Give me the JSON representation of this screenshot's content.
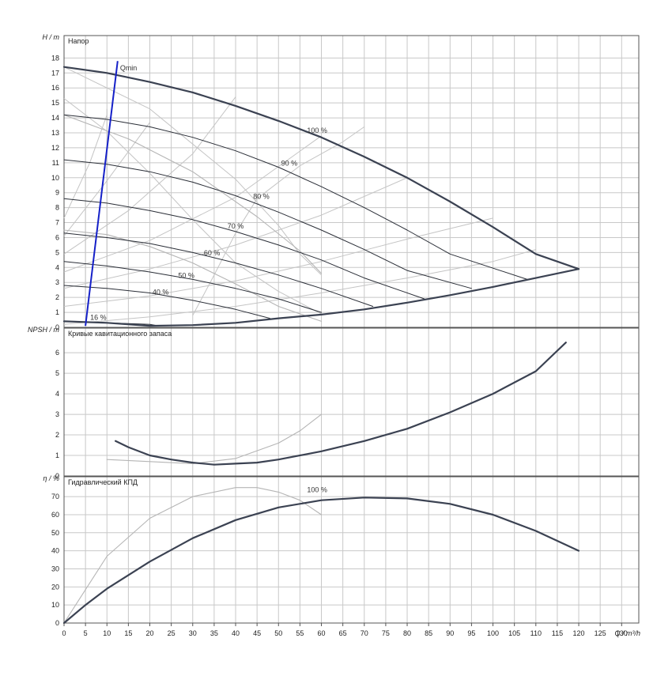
{
  "chart_data": [
    {
      "type": "line",
      "panel": "head",
      "title": "Напор",
      "ylabel_var": "H",
      "ylabel_unit": "m",
      "xlim": [
        0,
        134
      ],
      "ylim": [
        0,
        19.5
      ],
      "yticks": [
        0,
        1,
        2,
        3,
        4,
        5,
        6,
        7,
        8,
        9,
        10,
        11,
        12,
        13,
        14,
        15,
        16,
        17,
        18
      ],
      "grid": true,
      "qmin": {
        "label": "Qmin",
        "points": [
          [
            5,
            0.1
          ],
          [
            12.5,
            17.8
          ]
        ]
      },
      "series": [
        {
          "name": "100 %",
          "role": "main",
          "points": [
            [
              0,
              17.4
            ],
            [
              10,
              17.0
            ],
            [
              20,
              16.4
            ],
            [
              30,
              15.7
            ],
            [
              40,
              14.8
            ],
            [
              50,
              13.8
            ],
            [
              60,
              12.7
            ],
            [
              70,
              11.4
            ],
            [
              80,
              10.0
            ],
            [
              90,
              8.4
            ],
            [
              100,
              6.7
            ],
            [
              110,
              4.9
            ],
            [
              120,
              3.9
            ]
          ]
        },
        {
          "name": "90 %",
          "role": "speed",
          "points": [
            [
              0,
              14.2
            ],
            [
              10,
              13.9
            ],
            [
              20,
              13.4
            ],
            [
              30,
              12.7
            ],
            [
              40,
              11.8
            ],
            [
              50,
              10.7
            ],
            [
              60,
              9.4
            ],
            [
              70,
              8.0
            ],
            [
              80,
              6.5
            ],
            [
              90,
              4.9
            ],
            [
              108,
              3.2
            ]
          ]
        },
        {
          "name": "80 %",
          "role": "speed",
          "points": [
            [
              0,
              11.2
            ],
            [
              10,
              10.9
            ],
            [
              20,
              10.4
            ],
            [
              30,
              9.7
            ],
            [
              40,
              8.8
            ],
            [
              50,
              7.7
            ],
            [
              60,
              6.5
            ],
            [
              70,
              5.2
            ],
            [
              80,
              3.8
            ],
            [
              95,
              2.6
            ]
          ]
        },
        {
          "name": "70 %",
          "role": "speed",
          "points": [
            [
              0,
              8.6
            ],
            [
              10,
              8.3
            ],
            [
              20,
              7.8
            ],
            [
              30,
              7.2
            ],
            [
              40,
              6.4
            ],
            [
              50,
              5.5
            ],
            [
              60,
              4.5
            ],
            [
              70,
              3.3
            ],
            [
              84,
              1.9
            ]
          ]
        },
        {
          "name": "60 %",
          "role": "speed",
          "points": [
            [
              0,
              6.3
            ],
            [
              10,
              6.0
            ],
            [
              20,
              5.6
            ],
            [
              30,
              5.0
            ],
            [
              40,
              4.3
            ],
            [
              50,
              3.5
            ],
            [
              60,
              2.6
            ],
            [
              72,
              1.4
            ]
          ]
        },
        {
          "name": "50 %",
          "role": "speed",
          "points": [
            [
              0,
              4.4
            ],
            [
              10,
              4.1
            ],
            [
              20,
              3.7
            ],
            [
              30,
              3.2
            ],
            [
              40,
              2.6
            ],
            [
              50,
              1.9
            ],
            [
              60,
              1.0
            ]
          ]
        },
        {
          "name": "40 %",
          "role": "speed",
          "points": [
            [
              0,
              2.8
            ],
            [
              10,
              2.6
            ],
            [
              20,
              2.3
            ],
            [
              30,
              1.8
            ],
            [
              40,
              1.2
            ],
            [
              48,
              0.6
            ]
          ]
        },
        {
          "name": "16 %",
          "role": "speed",
          "points": [
            [
              0,
              0.4
            ],
            [
              10,
              0.3
            ],
            [
              20,
              0.2
            ],
            [
              22,
              0.1
            ]
          ]
        },
        {
          "name": "",
          "role": "minimum",
          "points": [
            [
              0,
              0.4
            ],
            [
              10,
              0.3
            ],
            [
              20,
              0.1
            ],
            [
              30,
              0.15
            ],
            [
              40,
              0.3
            ],
            [
              50,
              0.6
            ],
            [
              60,
              0.85
            ],
            [
              70,
              1.2
            ],
            [
              80,
              1.65
            ],
            [
              90,
              2.15
            ],
            [
              100,
              2.7
            ],
            [
              110,
              3.3
            ],
            [
              120,
              3.9
            ]
          ]
        },
        {
          "name": "",
          "role": "secondary",
          "points": [
            [
              0,
              6.5
            ],
            [
              10,
              6.2
            ],
            [
              20,
              5.4
            ],
            [
              30,
              4.3
            ],
            [
              40,
              2.9
            ],
            [
              50,
              1.4
            ],
            [
              60,
              0.4
            ]
          ]
        },
        {
          "name": "",
          "role": "secondary",
          "points": [
            [
              0,
              14.2
            ],
            [
              15,
              12.6
            ],
            [
              30,
              10.4
            ],
            [
              45,
              7.4
            ],
            [
              55,
              5.1
            ],
            [
              60,
              3.6
            ]
          ]
        }
      ],
      "efficiency_lines": [
        {
          "points": [
            [
              0,
              0.2
            ],
            [
              20,
              0.7
            ],
            [
              40,
              1.4
            ],
            [
              60,
              2.3
            ],
            [
              80,
              3.3
            ],
            [
              100,
              4.4
            ],
            [
              110,
              5.2
            ]
          ]
        },
        {
          "points": [
            [
              0,
              1.4
            ],
            [
              20,
              2.1
            ],
            [
              40,
              3.1
            ],
            [
              60,
              4.4
            ],
            [
              80,
              5.9
            ],
            [
              100,
              7.3
            ]
          ]
        },
        {
          "points": [
            [
              0,
              2.6
            ],
            [
              20,
              3.9
            ],
            [
              40,
              5.5
            ],
            [
              60,
              7.5
            ],
            [
              80,
              10.0
            ]
          ]
        },
        {
          "points": [
            [
              0,
              3.7
            ],
            [
              20,
              5.8
            ],
            [
              40,
              8.7
            ],
            [
              60,
              12.8
            ]
          ]
        },
        {
          "points": [
            [
              0,
              4.9
            ],
            [
              15,
              7.8
            ],
            [
              30,
              11.6
            ],
            [
              40,
              15.4
            ]
          ]
        },
        {
          "points": [
            [
              0,
              6.1
            ],
            [
              10,
              9.8
            ],
            [
              20,
              13.7
            ]
          ]
        },
        {
          "points": [
            [
              0,
              7.3
            ],
            [
              6,
              11.0
            ],
            [
              10,
              14.2
            ]
          ]
        },
        {
          "points": [
            [
              0,
              15.3
            ],
            [
              10,
              13.1
            ],
            [
              20,
              10.3
            ],
            [
              30,
              7.2
            ],
            [
              40,
              4.3
            ],
            [
              50,
              2.4
            ],
            [
              60,
              0.9
            ]
          ]
        },
        {
          "points": [
            [
              0,
              17.4
            ],
            [
              20,
              14.6
            ],
            [
              40,
              9.9
            ],
            [
              50,
              6.8
            ],
            [
              55,
              4.9
            ],
            [
              60,
              3.5
            ]
          ]
        },
        {
          "points": [
            [
              5,
              1.0
            ],
            [
              5,
              3.5
            ],
            [
              5,
              7.5
            ],
            [
              5,
              12.5
            ]
          ]
        },
        {
          "points": [
            [
              10,
              1.6
            ],
            [
              10,
              5.0
            ],
            [
              10,
              9.5
            ],
            [
              10,
              14.6
            ]
          ]
        },
        {
          "points": [
            [
              30,
              0.8
            ],
            [
              35,
              3.5
            ],
            [
              40,
              6.3
            ],
            [
              45,
              8.6
            ],
            [
              55,
              10.8
            ],
            [
              65,
              12.4
            ],
            [
              70,
              13.4
            ]
          ]
        }
      ],
      "labels": [
        {
          "text": "100 %",
          "x": 59,
          "y": 13.0
        },
        {
          "text": "90 %",
          "x": 52.5,
          "y": 10.8
        },
        {
          "text": "80 %",
          "x": 46,
          "y": 8.6
        },
        {
          "text": "70 %",
          "x": 40,
          "y": 6.6
        },
        {
          "text": "60 %",
          "x": 34.5,
          "y": 4.8
        },
        {
          "text": "50 %",
          "x": 28.5,
          "y": 3.3
        },
        {
          "text": "40 %",
          "x": 22.5,
          "y": 2.2
        },
        {
          "text": "16 %",
          "x": 8,
          "y": 0.5
        }
      ]
    },
    {
      "type": "line",
      "panel": "npsh",
      "title": "Кривые кавитационного запаса",
      "ylabel_var": "NPSH",
      "ylabel_unit": "m",
      "xlim": [
        0,
        134
      ],
      "ylim": [
        0,
        7.2
      ],
      "yticks": [
        0,
        1,
        2,
        3,
        4,
        5,
        6
      ],
      "grid": true,
      "series": [
        {
          "name": "",
          "role": "main",
          "points": [
            [
              12,
              1.7
            ],
            [
              15,
              1.4
            ],
            [
              20,
              1.0
            ],
            [
              25,
              0.8
            ],
            [
              30,
              0.65
            ],
            [
              35,
              0.55
            ],
            [
              40,
              0.6
            ],
            [
              45,
              0.65
            ],
            [
              50,
              0.8
            ],
            [
              60,
              1.2
            ],
            [
              70,
              1.7
            ],
            [
              80,
              2.3
            ],
            [
              90,
              3.1
            ],
            [
              100,
              4.0
            ],
            [
              110,
              5.1
            ],
            [
              117,
              6.5
            ]
          ]
        },
        {
          "name": "",
          "role": "secondary",
          "points": [
            [
              10,
              0.8
            ],
            [
              20,
              0.7
            ],
            [
              30,
              0.6
            ],
            [
              40,
              0.85
            ],
            [
              50,
              1.6
            ],
            [
              55,
              2.2
            ],
            [
              60,
              3.0
            ]
          ]
        }
      ]
    },
    {
      "type": "line",
      "panel": "efficiency",
      "title": "Гидравлический КПД",
      "ylabel_var": "η",
      "ylabel_unit": "%",
      "xlabel_var": "Q",
      "xlabel_unit": "m³/h",
      "xlim": [
        0,
        134
      ],
      "ylim": [
        0,
        81
      ],
      "yticks": [
        0,
        10,
        20,
        30,
        40,
        50,
        60,
        70
      ],
      "xticks": [
        0,
        5,
        10,
        15,
        20,
        25,
        30,
        35,
        40,
        45,
        50,
        55,
        60,
        65,
        70,
        75,
        80,
        85,
        90,
        95,
        100,
        105,
        110,
        115,
        120,
        125,
        130
      ],
      "grid": true,
      "series": [
        {
          "name": "100 %",
          "role": "main",
          "points": [
            [
              0,
              0
            ],
            [
              5,
              10
            ],
            [
              10,
              19
            ],
            [
              20,
              34
            ],
            [
              30,
              47
            ],
            [
              40,
              57
            ],
            [
              50,
              64
            ],
            [
              60,
              68
            ],
            [
              70,
              69.5
            ],
            [
              80,
              69
            ],
            [
              90,
              66
            ],
            [
              100,
              60
            ],
            [
              110,
              51
            ],
            [
              120,
              40
            ]
          ]
        },
        {
          "name": "",
          "role": "secondary",
          "points": [
            [
              0,
              0
            ],
            [
              10,
              37
            ],
            [
              20,
              58
            ],
            [
              30,
              70
            ],
            [
              40,
              75
            ],
            [
              45,
              75
            ],
            [
              50,
              72.5
            ],
            [
              55,
              68
            ],
            [
              60,
              60
            ]
          ]
        }
      ],
      "labels": [
        {
          "text": "100 %",
          "x": 59,
          "y": 72.5
        }
      ]
    }
  ]
}
